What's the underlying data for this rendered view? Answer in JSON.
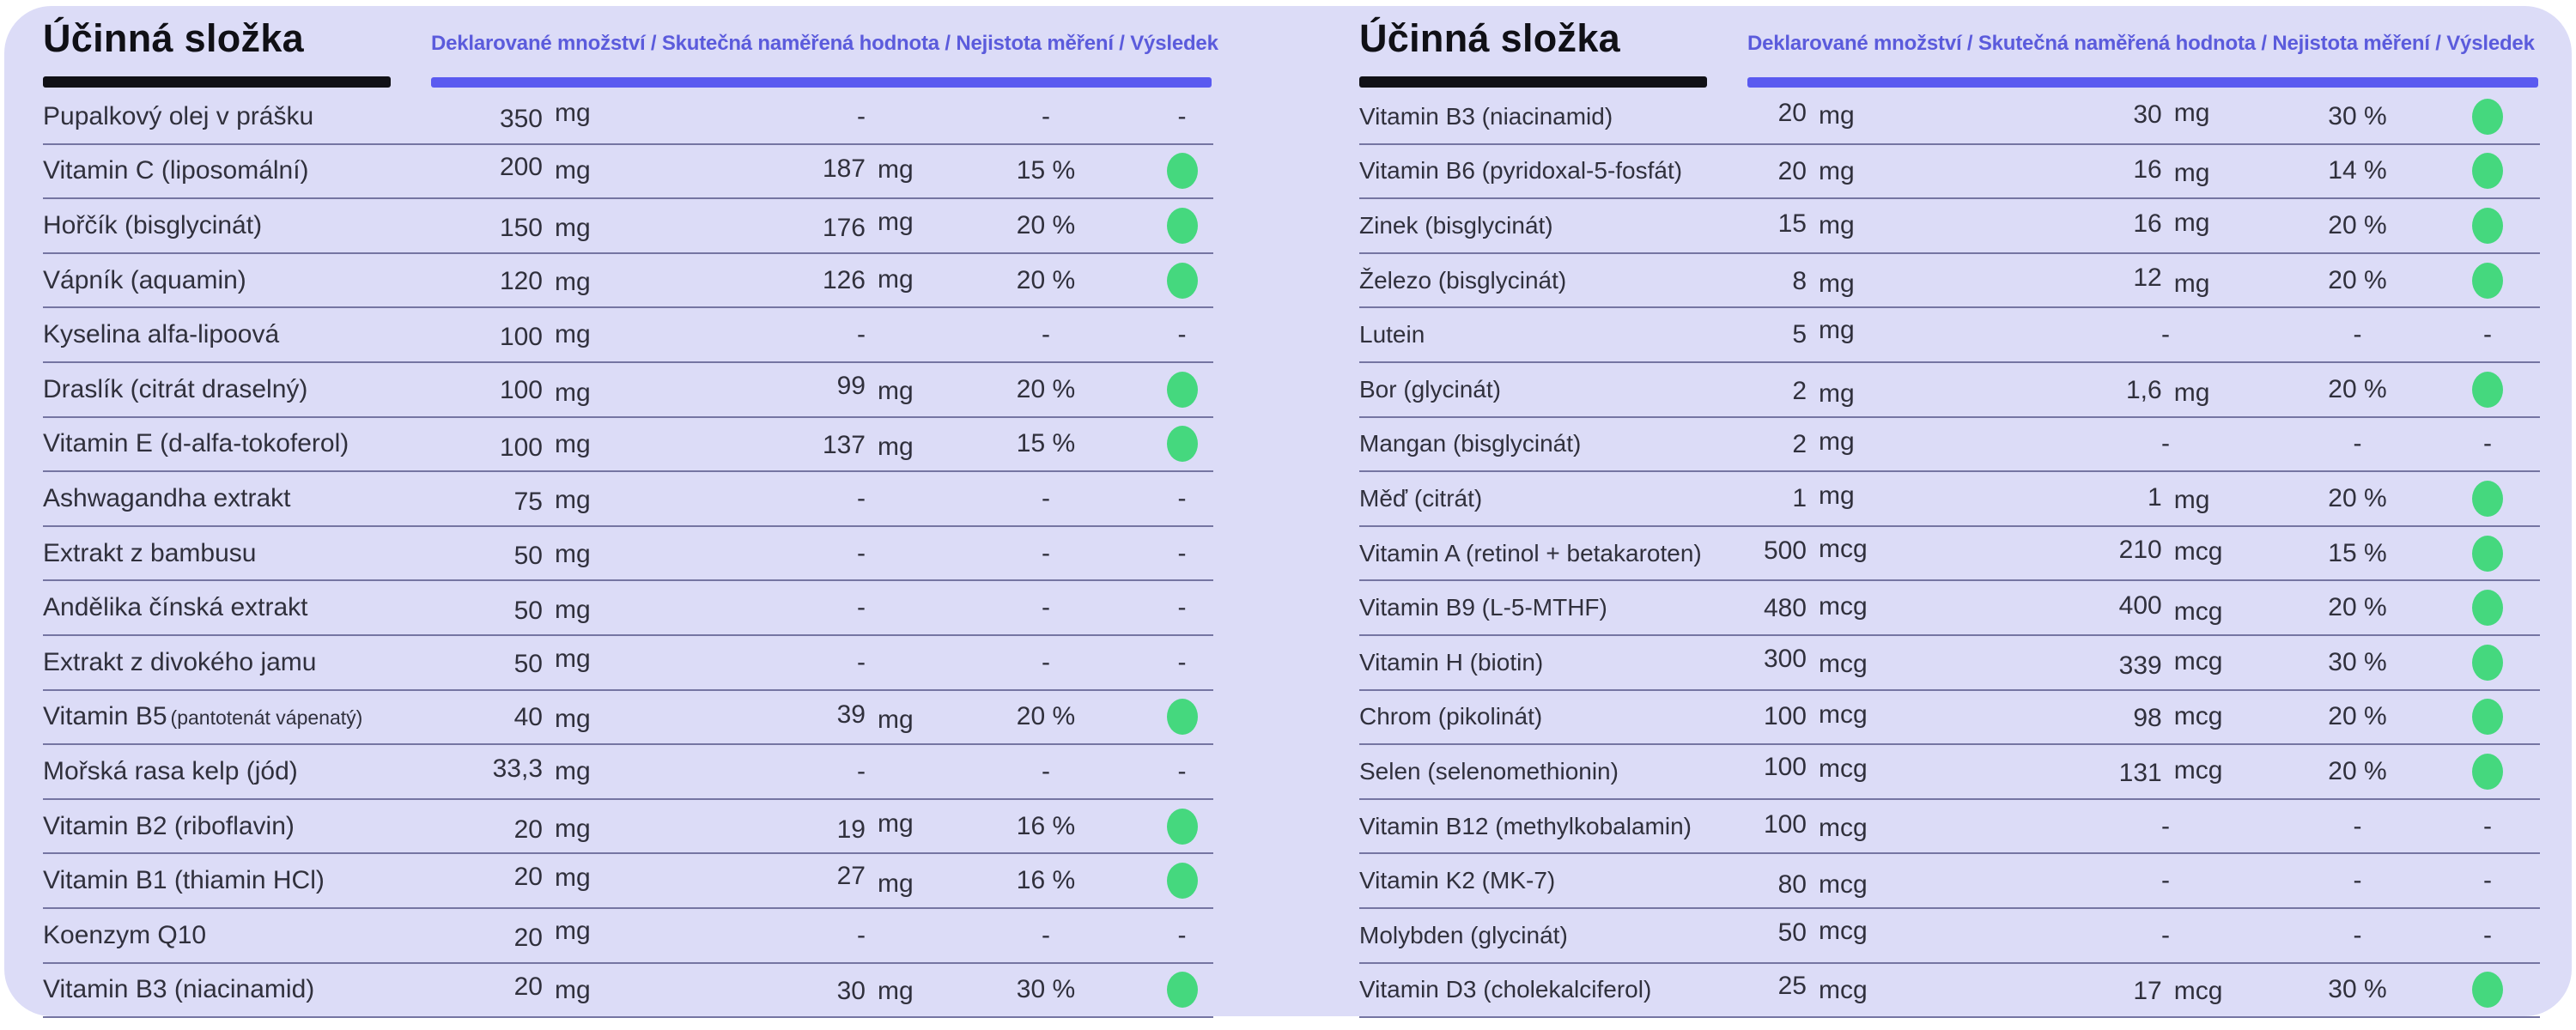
{
  "colors": {
    "page_background": "#ffffff",
    "panel_background": "#dcdcf7",
    "title_text": "#101016",
    "header_text_purple": "#5b5bdc",
    "header_bar_purple": "#5a5af0",
    "row_divider": "#7575a2",
    "body_text": "#30303c",
    "pass_dot_green": "#45d87e"
  },
  "icons": {
    "pass_indicator": "green-dot"
  },
  "tables": [
    {
      "title": "Účinná složka",
      "columns_header": "Deklarované množství / Skutečná naměřená hodnota / Nejistota měření / Výsledek",
      "rows": [
        {
          "label": "Pupalkový olej v prášku",
          "declared": "350",
          "declared_unit": "mg",
          "measured": "-",
          "measured_unit": "",
          "uncertainty": "-",
          "result": "-"
        },
        {
          "label": "Vitamin C (liposomální)",
          "declared": "200",
          "declared_unit": "mg",
          "measured": "187",
          "measured_unit": "mg",
          "uncertainty": "15 %",
          "result": "pass"
        },
        {
          "label": "Hořčík (bisglycinát)",
          "declared": "150",
          "declared_unit": "mg",
          "measured": "176",
          "measured_unit": "mg",
          "uncertainty": "20 %",
          "result": "pass"
        },
        {
          "label": "Vápník (aquamin)",
          "declared": "120",
          "declared_unit": "mg",
          "measured": "126",
          "measured_unit": "mg",
          "uncertainty": "20 %",
          "result": "pass"
        },
        {
          "label": "Kyselina alfa-lipoová",
          "declared": "100",
          "declared_unit": "mg",
          "measured": "-",
          "measured_unit": "",
          "uncertainty": "-",
          "result": "-"
        },
        {
          "label": "Draslík (citrát draselný)",
          "declared": "100",
          "declared_unit": "mg",
          "measured": "99",
          "measured_unit": "mg",
          "uncertainty": "20 %",
          "result": "pass"
        },
        {
          "label": "Vitamin E (d-alfa-tokoferol)",
          "declared": "100",
          "declared_unit": "mg",
          "measured": "137",
          "measured_unit": "mg",
          "uncertainty": "15 %",
          "result": "pass"
        },
        {
          "label": "Ashwagandha extrakt",
          "declared": "75",
          "declared_unit": "mg",
          "measured": "-",
          "measured_unit": "",
          "uncertainty": "-",
          "result": "-"
        },
        {
          "label": "Extrakt z bambusu",
          "declared": "50",
          "declared_unit": "mg",
          "measured": "-",
          "measured_unit": "",
          "uncertainty": "-",
          "result": "-"
        },
        {
          "label": "Andělika čínská extrakt",
          "declared": "50",
          "declared_unit": "mg",
          "measured": "-",
          "measured_unit": "",
          "uncertainty": "-",
          "result": "-"
        },
        {
          "label": "Extrakt z divokého jamu",
          "declared": "50",
          "declared_unit": "mg",
          "measured": "-",
          "measured_unit": "",
          "uncertainty": "-",
          "result": "-"
        },
        {
          "label": "Vitamin B5",
          "label_small": "(pantotenát vápenatý)",
          "declared": "40",
          "declared_unit": "mg",
          "measured": "39",
          "measured_unit": "mg",
          "uncertainty": "20 %",
          "result": "pass"
        },
        {
          "label": "Mořská rasa kelp (jód)",
          "declared": "33,3",
          "declared_unit": "mg",
          "measured": "-",
          "measured_unit": "",
          "uncertainty": "-",
          "result": "-"
        },
        {
          "label": "Vitamin B2 (riboflavin)",
          "declared": "20",
          "declared_unit": "mg",
          "measured": "19",
          "measured_unit": "mg",
          "uncertainty": "16 %",
          "result": "pass"
        },
        {
          "label": "Vitamin B1 (thiamin HCl)",
          "declared": "20",
          "declared_unit": "mg",
          "measured": "27",
          "measured_unit": "mg",
          "uncertainty": "16 %",
          "result": "pass"
        },
        {
          "label": "Koenzym Q10",
          "declared": "20",
          "declared_unit": "mg",
          "measured": "-",
          "measured_unit": "",
          "uncertainty": "-",
          "result": "-"
        },
        {
          "label": "Vitamin B3 (niacinamid)",
          "declared": "20",
          "declared_unit": "mg",
          "measured": "30",
          "measured_unit": "mg",
          "uncertainty": "30 %",
          "result": "pass"
        }
      ]
    },
    {
      "title": "Účinná složka",
      "columns_header": "Deklarované množství / Skutečná naměřená hodnota / Nejistota měření / Výsledek",
      "rows": [
        {
          "label": "Vitamin B3 (niacinamid)",
          "declared": "20",
          "declared_unit": "mg",
          "measured": "30",
          "measured_unit": "mg",
          "uncertainty": "30 %",
          "result": "pass"
        },
        {
          "label": "Vitamin B6 (pyridoxal-5-fosfát)",
          "declared": "20",
          "declared_unit": "mg",
          "measured": "16",
          "measured_unit": "mg",
          "uncertainty": "14 %",
          "result": "pass"
        },
        {
          "label": "Zinek (bisglycinát)",
          "declared": "15",
          "declared_unit": "mg",
          "measured": "16",
          "measured_unit": "mg",
          "uncertainty": "20 %",
          "result": "pass"
        },
        {
          "label": "Železo (bisglycinát)",
          "declared": "8",
          "declared_unit": "mg",
          "measured": "12",
          "measured_unit": "mg",
          "uncertainty": "20 %",
          "result": "pass"
        },
        {
          "label": "Lutein",
          "declared": "5",
          "declared_unit": "mg",
          "measured": "-",
          "measured_unit": "",
          "uncertainty": "-",
          "result": "-"
        },
        {
          "label": "Bor (glycinát)",
          "declared": "2",
          "declared_unit": "mg",
          "measured": "1,6",
          "measured_unit": "mg",
          "uncertainty": "20 %",
          "result": "pass"
        },
        {
          "label": "Mangan (bisglycinát)",
          "declared": "2",
          "declared_unit": "mg",
          "measured": "-",
          "measured_unit": "",
          "uncertainty": "-",
          "result": "-"
        },
        {
          "label": "Měď (citrát)",
          "declared": "1",
          "declared_unit": "mg",
          "measured": "1",
          "measured_unit": "mg",
          "uncertainty": "20 %",
          "result": "pass"
        },
        {
          "label": "Vitamin A (retinol + betakaroten)",
          "declared": "500",
          "declared_unit": "mcg",
          "measured": "210",
          "measured_unit": "mcg",
          "uncertainty": "15 %",
          "result": "pass"
        },
        {
          "label": "Vitamin B9 (L-5-MTHF)",
          "declared": "480",
          "declared_unit": "mcg",
          "measured": "400",
          "measured_unit": "mcg",
          "uncertainty": "20 %",
          "result": "pass"
        },
        {
          "label": "Vitamin H (biotin)",
          "declared": "300",
          "declared_unit": "mcg",
          "measured": "339",
          "measured_unit": "mcg",
          "uncertainty": "30 %",
          "result": "pass"
        },
        {
          "label": "Chrom (pikolinát)",
          "declared": "100",
          "declared_unit": "mcg",
          "measured": "98",
          "measured_unit": "mcg",
          "uncertainty": "20 %",
          "result": "pass"
        },
        {
          "label": "Selen (selenomethionin)",
          "declared": "100",
          "declared_unit": "mcg",
          "measured": "131",
          "measured_unit": "mcg",
          "uncertainty": "20 %",
          "result": "pass"
        },
        {
          "label": "Vitamin B12 (methylkobalamin)",
          "declared": "100",
          "declared_unit": "mcg",
          "measured": "-",
          "measured_unit": "",
          "uncertainty": "-",
          "result": "-"
        },
        {
          "label": "Vitamin K2 (MK-7)",
          "declared": "80",
          "declared_unit": "mcg",
          "measured": "-",
          "measured_unit": "",
          "uncertainty": "-",
          "result": "-"
        },
        {
          "label": "Molybden (glycinát)",
          "declared": "50",
          "declared_unit": "mcg",
          "measured": "-",
          "measured_unit": "",
          "uncertainty": "-",
          "result": "-"
        },
        {
          "label": "Vitamin D3 (cholekalciferol)",
          "declared": "25",
          "declared_unit": "mcg",
          "measured": "17",
          "measured_unit": "mcg",
          "uncertainty": "30 %",
          "result": "pass"
        }
      ]
    }
  ]
}
